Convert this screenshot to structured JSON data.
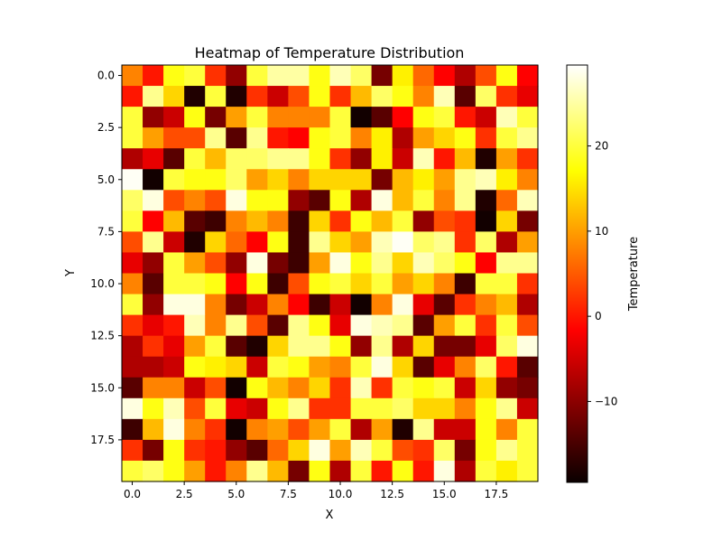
{
  "chart_data": {
    "type": "heatmap",
    "title": "Heatmap of Temperature Distribution",
    "xlabel": "X",
    "ylabel": "Y",
    "colorbar_label": "Temperature",
    "colormap": "hot",
    "vmin": -19.5,
    "vmax": 29.5,
    "x_ticks": [
      "0.0",
      "2.5",
      "5.0",
      "7.5",
      "10.0",
      "12.5",
      "15.0",
      "17.5"
    ],
    "y_ticks": [
      "0.0",
      "2.5",
      "5.0",
      "7.5",
      "10.0",
      "12.5",
      "15.0",
      "17.5"
    ],
    "colorbar_ticks": [
      "−10",
      "0",
      "10",
      "20"
    ],
    "grid": false,
    "legend": "colorbar-right",
    "values": [
      [
        8,
        0,
        18,
        20,
        2,
        -10,
        20,
        25,
        25,
        18,
        26,
        22,
        -12,
        16,
        6,
        -2,
        -8,
        4,
        18,
        -2
      ],
      [
        0,
        24,
        14,
        -18,
        20,
        -18,
        2,
        -6,
        4,
        18,
        2,
        12,
        22,
        18,
        8,
        26,
        -14,
        22,
        2,
        -4
      ],
      [
        20,
        -10,
        -6,
        18,
        -12,
        10,
        20,
        8,
        8,
        8,
        20,
        -19,
        -14,
        -2,
        18,
        20,
        0,
        -6,
        26,
        20
      ],
      [
        20,
        10,
        4,
        4,
        24,
        -14,
        24,
        0,
        -2,
        18,
        20,
        8,
        16,
        -8,
        10,
        14,
        18,
        2,
        20,
        24
      ],
      [
        -8,
        -4,
        -14,
        20,
        12,
        22,
        22,
        24,
        24,
        18,
        2,
        -10,
        16,
        -6,
        26,
        0,
        12,
        -18,
        10,
        2
      ],
      [
        29,
        -19,
        20,
        18,
        18,
        22,
        10,
        14,
        8,
        14,
        14,
        14,
        -12,
        12,
        16,
        10,
        24,
        26,
        16,
        8
      ],
      [
        22,
        28,
        4,
        8,
        4,
        28,
        18,
        18,
        -10,
        -14,
        18,
        -8,
        28,
        12,
        20,
        8,
        24,
        -18,
        6,
        26
      ],
      [
        20,
        -2,
        12,
        -14,
        -16,
        8,
        12,
        8,
        -16,
        14,
        2,
        18,
        12,
        20,
        -10,
        4,
        2,
        -19,
        14,
        -12
      ],
      [
        4,
        24,
        -6,
        -18,
        14,
        6,
        -2,
        18,
        -16,
        24,
        14,
        10,
        26,
        29,
        22,
        24,
        2,
        22,
        -8,
        10
      ],
      [
        -4,
        -10,
        20,
        10,
        4,
        -10,
        28,
        -12,
        -16,
        10,
        28,
        18,
        24,
        14,
        26,
        22,
        18,
        -2,
        24,
        24
      ],
      [
        8,
        -14,
        20,
        20,
        18,
        -2,
        18,
        -16,
        4,
        18,
        20,
        14,
        20,
        10,
        14,
        8,
        -16,
        20,
        20,
        2
      ],
      [
        20,
        -10,
        28,
        28,
        8,
        -12,
        -6,
        8,
        -2,
        -16,
        -6,
        -19,
        8,
        28,
        -4,
        -14,
        2,
        8,
        12,
        -8
      ],
      [
        2,
        -4,
        0,
        26,
        8,
        24,
        4,
        -14,
        24,
        18,
        -4,
        28,
        26,
        24,
        -14,
        10,
        20,
        2,
        20,
        4
      ],
      [
        -8,
        2,
        -4,
        10,
        20,
        -14,
        -18,
        14,
        24,
        24,
        18,
        -10,
        24,
        -8,
        14,
        -12,
        -12,
        -4,
        22,
        28
      ],
      [
        -8,
        -8,
        -6,
        18,
        16,
        14,
        -6,
        20,
        18,
        10,
        8,
        20,
        28,
        14,
        -14,
        -4,
        8,
        22,
        0,
        -14
      ],
      [
        -14,
        8,
        8,
        -6,
        4,
        -19,
        18,
        12,
        8,
        14,
        2,
        26,
        2,
        20,
        18,
        20,
        -6,
        14,
        -10,
        -12
      ],
      [
        28,
        18,
        26,
        4,
        20,
        -4,
        -6,
        18,
        24,
        2,
        2,
        20,
        20,
        22,
        14,
        14,
        8,
        18,
        24,
        -6
      ],
      [
        -16,
        12,
        28,
        8,
        2,
        -19,
        8,
        10,
        4,
        10,
        20,
        -8,
        10,
        -18,
        24,
        -6,
        -6,
        18,
        8,
        20
      ],
      [
        2,
        -12,
        18,
        2,
        0,
        -10,
        -14,
        6,
        14,
        28,
        10,
        26,
        20,
        4,
        2,
        22,
        -12,
        18,
        24,
        20
      ],
      [
        20,
        22,
        18,
        10,
        0,
        8,
        24,
        12,
        -12,
        18,
        -8,
        20,
        0,
        18,
        0,
        28,
        -8,
        20,
        16,
        20
      ]
    ]
  }
}
